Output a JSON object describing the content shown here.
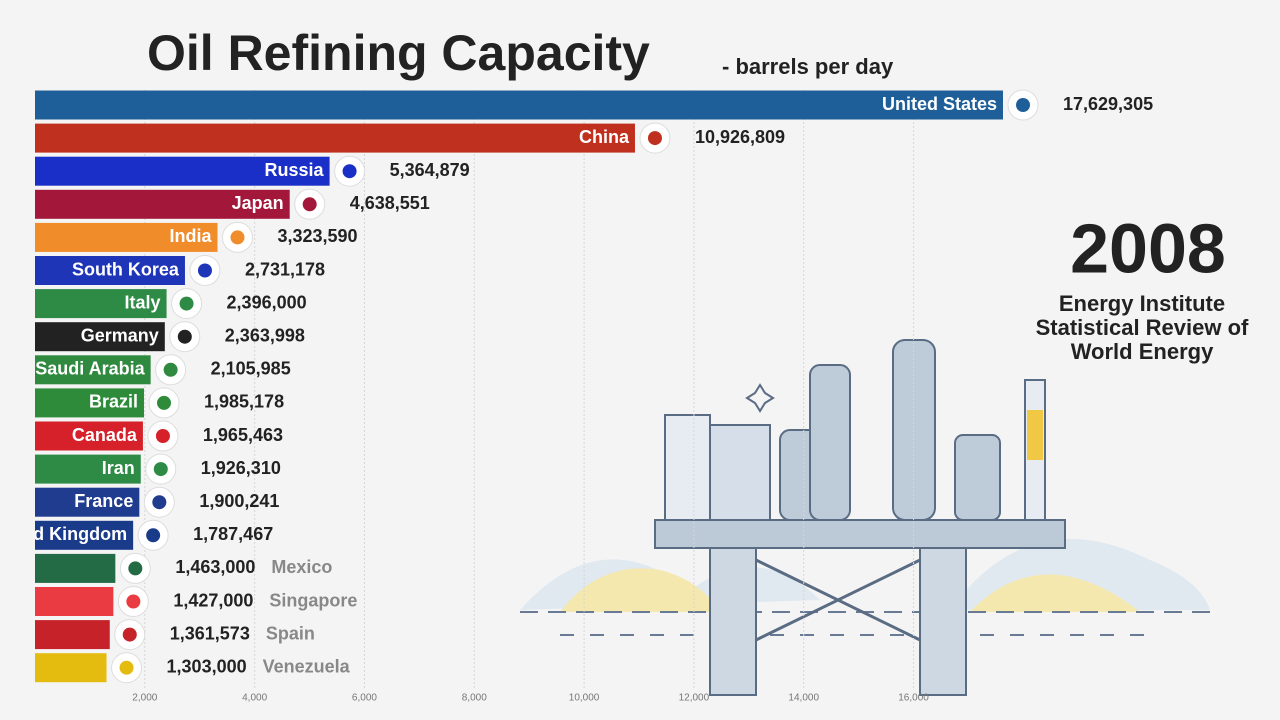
{
  "chart_data": {
    "type": "bar",
    "orientation": "horizontal",
    "title": "Oil Refining Capacity",
    "subtitle": "- barrels per day",
    "year": "2008",
    "source": [
      "Energy Institute",
      "Statistical Review of",
      "World Energy"
    ],
    "categories": [
      "United States",
      "China",
      "Russia",
      "Japan",
      "India",
      "South Korea",
      "Italy",
      "Germany",
      "Saudi Arabia",
      "Brazil",
      "Canada",
      "Iran",
      "France",
      "United Kingdom",
      "Mexico",
      "Singapore",
      "Spain",
      "Venezuela"
    ],
    "values": [
      17629.305,
      10926.809,
      5364.879,
      4638.551,
      3323.59,
      2731.178,
      2396.0,
      2363.998,
      2105.985,
      1985.178,
      1965.463,
      1926.31,
      1900.241,
      1787.467,
      1463.0,
      1427.0,
      1361.573,
      1303.0
    ],
    "value_labels": [
      "17,629,305",
      "10,926,809",
      "5,364,879",
      "4,638,551",
      "3,323,590",
      "2,731,178",
      "2,396,000",
      "2,363,998",
      "2,105,985",
      "1,985,178",
      "1,965,463",
      "1,926,310",
      "1,900,241",
      "1,787,467",
      "1,463,000",
      "1,427,000",
      "1,361,573",
      "1,303,000"
    ],
    "colors": [
      "#1f5f99",
      "#c0301f",
      "#1a2fc8",
      "#a3183a",
      "#f08c2a",
      "#1f35b8",
      "#2e8b45",
      "#222222",
      "#2f8a3f",
      "#2e8b3a",
      "#d6202a",
      "#2e8b45",
      "#1f3c8f",
      "#1a3a8a",
      "#236b45",
      "#ea3b43",
      "#c5222a",
      "#e4bc10"
    ],
    "xlim": [
      0,
      17629.305
    ],
    "xticks": [
      {
        "value": 2000,
        "label": "2,000"
      },
      {
        "value": 4000,
        "label": "4,000"
      },
      {
        "value": 6000,
        "label": "6,000"
      },
      {
        "value": 8000,
        "label": "8,000"
      },
      {
        "value": 10000,
        "label": "10,000"
      },
      {
        "value": 12000,
        "label": "12,000"
      },
      {
        "value": 14000,
        "label": "14,000"
      },
      {
        "value": 16000,
        "label": "16,000"
      }
    ],
    "grid": true
  }
}
